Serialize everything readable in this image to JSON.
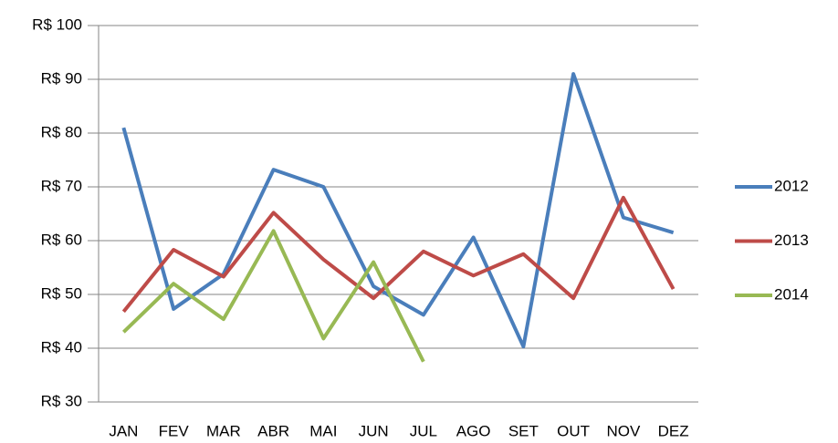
{
  "chart_data": {
    "type": "line",
    "categories": [
      "JAN",
      "FEV",
      "MAR",
      "ABR",
      "MAI",
      "JUN",
      "JUL",
      "AGO",
      "SET",
      "OUT",
      "NOV",
      "DEZ"
    ],
    "series": [
      {
        "name": "2012",
        "color": "#4a7ebb",
        "values": [
          81,
          47.3,
          53.8,
          73.2,
          70,
          51.5,
          46.2,
          60.6,
          40.3,
          91,
          64.3,
          61.5
        ]
      },
      {
        "name": "2013",
        "color": "#be4b48",
        "values": [
          46.8,
          58.3,
          53.3,
          65.2,
          56.5,
          49.3,
          58,
          53.5,
          57.5,
          49.3,
          68,
          51
        ]
      },
      {
        "name": "2014",
        "color": "#98b954",
        "values": [
          43,
          52,
          45.4,
          61.8,
          41.8,
          56,
          37.5,
          null,
          null,
          null,
          null,
          null
        ]
      }
    ],
    "ylim": [
      30,
      100
    ],
    "yticks": [
      {
        "value": 30,
        "label": "R$ 30"
      },
      {
        "value": 40,
        "label": "R$ 40"
      },
      {
        "value": 50,
        "label": "R$ 50"
      },
      {
        "value": 60,
        "label": "R$ 60"
      },
      {
        "value": 70,
        "label": "R$ 70"
      },
      {
        "value": 80,
        "label": "R$ 80"
      },
      {
        "value": 90,
        "label": "R$ 90"
      },
      {
        "value": 100,
        "label": "R$ 100"
      }
    ],
    "grid": true,
    "legend": "right"
  }
}
